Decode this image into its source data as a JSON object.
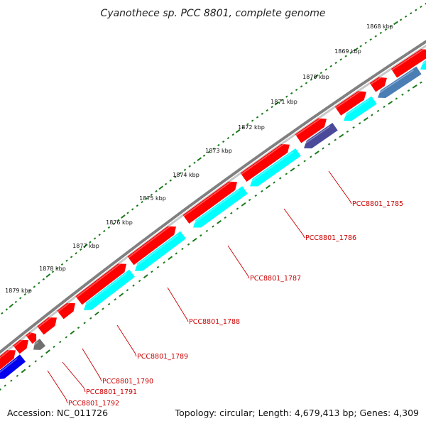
{
  "map": {
    "title": "Cyanothece sp. PCC 8801, complete genome",
    "accession": "Accession: NC_011726",
    "topology": "Topology: circular; Length: 4,679,413 bp; Genes: 4,309"
  },
  "scale_labels": [
    "1868 kbp",
    "1869 kbp",
    "1870 kbp",
    "1871 kbp",
    "1872 kbp",
    "1873 kbp",
    "1874 kbp",
    "1875 kbp",
    "1876 kbp",
    "1877 kbp",
    "1878 kbp",
    "1879 kbp"
  ],
  "gene_labels": [
    "PCC8801_1785",
    "PCC8801_1786",
    "PCC8801_1787",
    "PCC8801_1788",
    "PCC8801_1789",
    "PCC8801_1790",
    "PCC8801_1791",
    "PCC8801_1792"
  ],
  "colors": {
    "backbone": "#808080",
    "forward_cds": "#ff0000",
    "reverse_cds": "#00ffff",
    "tick": "#1a7a1a",
    "label_text": "#cc0000",
    "gene_1785": "#4b4a9a",
    "gene_1792": "#707070",
    "blue_gene": "#0000ee",
    "steel_gene": "#4a7eb5"
  }
}
